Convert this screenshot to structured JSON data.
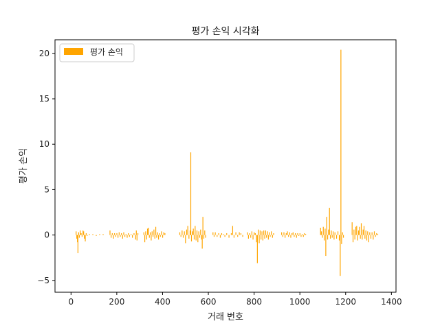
{
  "chart_data": {
    "type": "bar",
    "title": "평가 손익 시각화",
    "xlabel": "거래 번호",
    "ylabel": "평가 손익",
    "xlim": [
      -70,
      1420
    ],
    "ylim": [
      -6.3,
      21.5
    ],
    "x_ticks": [
      0,
      200,
      400,
      600,
      800,
      1000,
      1200,
      1400
    ],
    "y_ticks": [
      -5,
      0,
      5,
      10,
      15,
      20
    ],
    "y_tick_labels": [
      "−5",
      "0",
      "5",
      "10",
      "15",
      "20"
    ],
    "legend": {
      "position": "top-left",
      "entries": [
        {
          "label": "평가 손익",
          "color": "#ffa500"
        }
      ]
    },
    "grid": false,
    "series": [
      {
        "name": "평가 손익",
        "color": "#ffa500",
        "points": [
          [
            22,
            0.4
          ],
          [
            25,
            -0.4
          ],
          [
            28,
            -0.8
          ],
          [
            30,
            -2.0
          ],
          [
            33,
            0.3
          ],
          [
            36,
            -0.3
          ],
          [
            40,
            0.5
          ],
          [
            44,
            0.2
          ],
          [
            48,
            -0.2
          ],
          [
            52,
            0.5
          ],
          [
            55,
            0.4
          ],
          [
            58,
            -0.4
          ],
          [
            62,
            -0.7
          ],
          [
            66,
            0.2
          ],
          [
            70,
            -0.1
          ],
          [
            80,
            0.1
          ],
          [
            95,
            0.1
          ],
          [
            110,
            -0.1
          ],
          [
            125,
            0.1
          ],
          [
            140,
            0.1
          ],
          [
            170,
            0.5
          ],
          [
            175,
            -0.3
          ],
          [
            180,
            0.2
          ],
          [
            185,
            -0.4
          ],
          [
            190,
            0.2
          ],
          [
            195,
            -0.2
          ],
          [
            200,
            0.2
          ],
          [
            205,
            -0.3
          ],
          [
            210,
            0.3
          ],
          [
            215,
            -0.2
          ],
          [
            220,
            0.2
          ],
          [
            225,
            -0.4
          ],
          [
            230,
            0.3
          ],
          [
            235,
            -0.2
          ],
          [
            240,
            0.1
          ],
          [
            245,
            -0.3
          ],
          [
            250,
            0.2
          ],
          [
            255,
            -0.2
          ],
          [
            262,
            0.1
          ],
          [
            268,
            -0.3
          ],
          [
            275,
            0.2
          ],
          [
            282,
            -0.5
          ],
          [
            285,
            0.5
          ],
          [
            288,
            -0.6
          ],
          [
            292,
            0.2
          ],
          [
            318,
            0.3
          ],
          [
            322,
            -0.8
          ],
          [
            326,
            0.4
          ],
          [
            330,
            -0.5
          ],
          [
            334,
            0.7
          ],
          [
            338,
            0.8
          ],
          [
            342,
            -0.3
          ],
          [
            346,
            0.3
          ],
          [
            350,
            -0.6
          ],
          [
            354,
            0.4
          ],
          [
            358,
            -0.2
          ],
          [
            362,
            0.6
          ],
          [
            366,
            -0.4
          ],
          [
            370,
            0.9
          ],
          [
            374,
            -0.3
          ],
          [
            378,
            0.3
          ],
          [
            382,
            -0.5
          ],
          [
            386,
            0.2
          ],
          [
            390,
            -0.2
          ],
          [
            395,
            0.4
          ],
          [
            400,
            -0.3
          ],
          [
            405,
            0.3
          ],
          [
            410,
            0.2
          ],
          [
            475,
            0.3
          ],
          [
            480,
            -0.2
          ],
          [
            485,
            0.5
          ],
          [
            490,
            -0.3
          ],
          [
            495,
            0.4
          ],
          [
            500,
            -0.9
          ],
          [
            505,
            0.6
          ],
          [
            510,
            1.0
          ],
          [
            515,
            -0.4
          ],
          [
            520,
            0.5
          ],
          [
            523,
            9.1
          ],
          [
            526,
            -0.7
          ],
          [
            530,
            0.4
          ],
          [
            534,
            0.7
          ],
          [
            538,
            -0.5
          ],
          [
            542,
            1.0
          ],
          [
            546,
            -0.6
          ],
          [
            550,
            0.5
          ],
          [
            554,
            -0.8
          ],
          [
            558,
            0.4
          ],
          [
            562,
            -0.3
          ],
          [
            566,
            0.6
          ],
          [
            570,
            -0.5
          ],
          [
            573,
            -1.5
          ],
          [
            576,
            2.0
          ],
          [
            580,
            -0.4
          ],
          [
            584,
            0.5
          ],
          [
            588,
            -0.3
          ],
          [
            620,
            0.3
          ],
          [
            625,
            -0.2
          ],
          [
            630,
            0.3
          ],
          [
            638,
            -0.2
          ],
          [
            645,
            0.2
          ],
          [
            652,
            -0.3
          ],
          [
            658,
            0.2
          ],
          [
            665,
            0.1
          ],
          [
            672,
            -0.2
          ],
          [
            680,
            0.2
          ],
          [
            690,
            -0.3
          ],
          [
            700,
            0.2
          ],
          [
            706,
            1.0
          ],
          [
            712,
            -0.3
          ],
          [
            720,
            0.3
          ],
          [
            728,
            -0.2
          ],
          [
            735,
            0.3
          ],
          [
            742,
            0.2
          ],
          [
            750,
            -0.2
          ],
          [
            770,
            0.3
          ],
          [
            775,
            -0.4
          ],
          [
            780,
            0.2
          ],
          [
            785,
            -0.3
          ],
          [
            790,
            0.4
          ],
          [
            795,
            -0.5
          ],
          [
            800,
            0.3
          ],
          [
            805,
            0.2
          ],
          [
            810,
            -0.8
          ],
          [
            814,
            -3.1
          ],
          [
            818,
            0.6
          ],
          [
            822,
            -0.9
          ],
          [
            826,
            0.5
          ],
          [
            830,
            -0.5
          ],
          [
            834,
            0.4
          ],
          [
            838,
            -0.6
          ],
          [
            842,
            0.5
          ],
          [
            846,
            -0.4
          ],
          [
            850,
            0.5
          ],
          [
            854,
            -0.3
          ],
          [
            858,
            0.4
          ],
          [
            862,
            -0.5
          ],
          [
            866,
            0.3
          ],
          [
            870,
            -0.2
          ],
          [
            875,
            0.4
          ],
          [
            880,
            -0.3
          ],
          [
            885,
            0.2
          ],
          [
            920,
            0.3
          ],
          [
            925,
            -0.2
          ],
          [
            930,
            0.3
          ],
          [
            935,
            -0.3
          ],
          [
            940,
            0.2
          ],
          [
            945,
            0.4
          ],
          [
            950,
            -0.2
          ],
          [
            955,
            0.3
          ],
          [
            960,
            -0.3
          ],
          [
            965,
            0.2
          ],
          [
            970,
            0.3
          ],
          [
            975,
            -0.2
          ],
          [
            980,
            0.2
          ],
          [
            985,
            -0.3
          ],
          [
            990,
            0.2
          ],
          [
            995,
            -0.1
          ],
          [
            1000,
            0.2
          ],
          [
            1005,
            -0.2
          ],
          [
            1010,
            0.1
          ],
          [
            1015,
            -0.2
          ],
          [
            1020,
            0.2
          ],
          [
            1025,
            0.1
          ],
          [
            1090,
            0.8
          ],
          [
            1094,
            0.4
          ],
          [
            1098,
            -0.3
          ],
          [
            1102,
            0.9
          ],
          [
            1106,
            -0.6
          ],
          [
            1110,
            0.7
          ],
          [
            1113,
            -2.3
          ],
          [
            1117,
            2.0
          ],
          [
            1121,
            -0.5
          ],
          [
            1125,
            0.6
          ],
          [
            1129,
            3.0
          ],
          [
            1133,
            -0.4
          ],
          [
            1137,
            0.5
          ],
          [
            1141,
            -0.3
          ],
          [
            1145,
            0.4
          ],
          [
            1149,
            -0.5
          ],
          [
            1153,
            0.3
          ],
          [
            1160,
            -0.4
          ],
          [
            1166,
            0.4
          ],
          [
            1172,
            -0.6
          ],
          [
            1176,
            -4.5
          ],
          [
            1179,
            20.4
          ],
          [
            1182,
            -1.0
          ],
          [
            1186,
            0.3
          ],
          [
            1190,
            -0.3
          ],
          [
            1228,
            1.4
          ],
          [
            1232,
            -0.8
          ],
          [
            1236,
            0.6
          ],
          [
            1240,
            -0.5
          ],
          [
            1244,
            0.9
          ],
          [
            1248,
            1.0
          ],
          [
            1252,
            -0.6
          ],
          [
            1256,
            0.5
          ],
          [
            1260,
            0.9
          ],
          [
            1264,
            -0.4
          ],
          [
            1268,
            1.3
          ],
          [
            1272,
            -0.5
          ],
          [
            1276,
            0.6
          ],
          [
            1280,
            1.0
          ],
          [
            1284,
            -0.4
          ],
          [
            1288,
            0.5
          ],
          [
            1292,
            -0.6
          ],
          [
            1296,
            0.4
          ],
          [
            1300,
            -0.8
          ],
          [
            1305,
            0.3
          ],
          [
            1310,
            -0.4
          ],
          [
            1315,
            0.3
          ],
          [
            1320,
            -0.5
          ],
          [
            1325,
            0.4
          ],
          [
            1330,
            -0.2
          ],
          [
            1335,
            0.2
          ],
          [
            1340,
            0.1
          ]
        ]
      }
    ]
  }
}
